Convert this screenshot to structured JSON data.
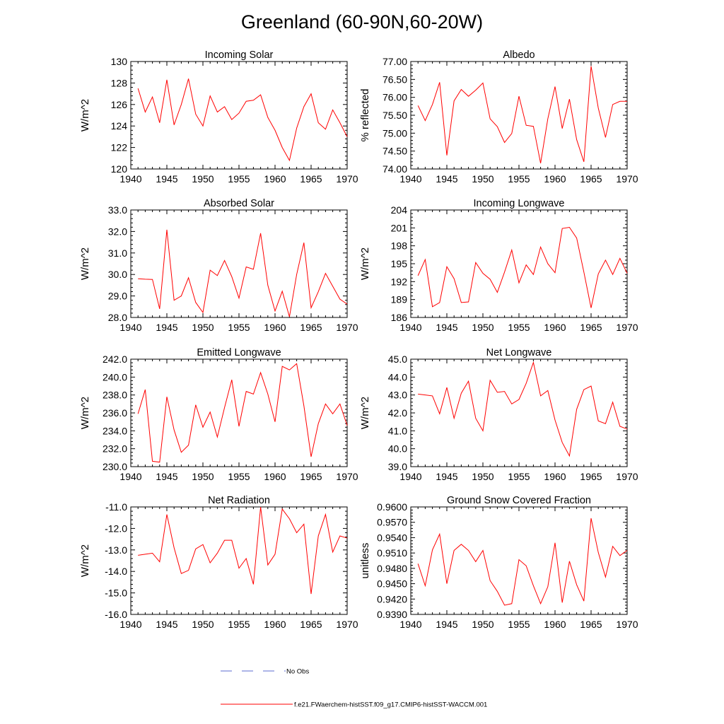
{
  "title": "Greenland (60-90N,60-20W)",
  "legend": [
    {
      "label": "No Obs",
      "color": "#5b6bd0",
      "style": "dashed"
    },
    {
      "label": "f.e21.FWaerchem-histSST.f09_g17.CMIP6-histSST-WACCM.001",
      "color": "#ff0000",
      "style": "solid"
    }
  ],
  "chart_data": [
    {
      "type": "line",
      "title": "Incoming Solar",
      "ylabel": "W/m^2",
      "xlim": [
        1940,
        1970
      ],
      "ylim": [
        120,
        130
      ],
      "xticks": [
        "1940",
        "1945",
        "1950",
        "1955",
        "1960",
        "1965",
        "1970"
      ],
      "yticks": [
        "120",
        "122",
        "124",
        "126",
        "128",
        "130"
      ],
      "x": [
        1941,
        1942,
        1943,
        1944,
        1945,
        1946,
        1947,
        1948,
        1949,
        1950,
        1951,
        1952,
        1953,
        1954,
        1955,
        1956,
        1957,
        1958,
        1959,
        1960,
        1961,
        1962,
        1963,
        1964,
        1965,
        1966,
        1967,
        1968,
        1969,
        1970
      ],
      "series": [
        {
          "color": "#ff0000",
          "values": [
            127.5,
            125.3,
            126.7,
            124.3,
            128.3,
            124.1,
            126.0,
            128.4,
            125.1,
            124.0,
            126.8,
            125.3,
            125.8,
            124.6,
            125.2,
            126.3,
            126.4,
            126.9,
            124.8,
            123.6,
            122.0,
            120.8,
            123.8,
            125.8,
            127.0,
            124.3,
            123.7,
            125.5,
            124.3,
            123.0
          ]
        }
      ]
    },
    {
      "type": "line",
      "title": "Albedo",
      "ylabel": "% reflected",
      "xlim": [
        1940,
        1970
      ],
      "ylim": [
        74.0,
        77.0
      ],
      "xticks": [
        "1940",
        "1945",
        "1950",
        "1955",
        "1960",
        "1965",
        "1970"
      ],
      "yticks": [
        "74.00",
        "74.50",
        "75.00",
        "75.50",
        "76.00",
        "76.50",
        "77.00"
      ],
      "x": [
        1941,
        1942,
        1943,
        1944,
        1945,
        1946,
        1947,
        1948,
        1949,
        1950,
        1951,
        1952,
        1953,
        1954,
        1955,
        1956,
        1957,
        1958,
        1959,
        1960,
        1961,
        1962,
        1963,
        1964,
        1965,
        1966,
        1967,
        1968,
        1969,
        1970
      ],
      "series": [
        {
          "color": "#ff0000",
          "values": [
            75.77,
            75.35,
            75.8,
            76.42,
            74.38,
            75.9,
            76.22,
            76.03,
            76.2,
            76.4,
            75.4,
            75.18,
            74.74,
            74.99,
            76.03,
            75.22,
            75.19,
            74.16,
            75.4,
            76.3,
            75.13,
            75.95,
            74.82,
            74.2,
            76.87,
            75.7,
            74.88,
            75.8,
            75.89,
            75.89
          ]
        }
      ]
    },
    {
      "type": "line",
      "title": "Absorbed Solar",
      "ylabel": "W/m^2",
      "xlim": [
        1940,
        1970
      ],
      "ylim": [
        28.0,
        33.0
      ],
      "xticks": [
        "1940",
        "1945",
        "1950",
        "1955",
        "1960",
        "1965",
        "1970"
      ],
      "yticks": [
        "28.0",
        "29.0",
        "30.0",
        "31.0",
        "32.0",
        "33.0"
      ],
      "x": [
        1941,
        1942,
        1943,
        1944,
        1945,
        1946,
        1947,
        1948,
        1949,
        1950,
        1951,
        1952,
        1953,
        1954,
        1955,
        1956,
        1957,
        1958,
        1959,
        1960,
        1961,
        1962,
        1963,
        1964,
        1965,
        1966,
        1967,
        1968,
        1969,
        1970
      ],
      "series": [
        {
          "color": "#ff0000",
          "values": [
            29.8,
            29.78,
            29.77,
            28.4,
            32.08,
            28.8,
            29.0,
            29.85,
            28.7,
            28.23,
            30.2,
            29.95,
            30.65,
            29.9,
            28.9,
            30.35,
            30.24,
            31.92,
            29.5,
            28.3,
            29.22,
            28.03,
            30.0,
            31.48,
            28.45,
            29.2,
            30.05,
            29.45,
            28.85,
            28.62
          ]
        }
      ]
    },
    {
      "type": "line",
      "title": "Incoming Longwave",
      "ylabel": "W/m^2",
      "xlim": [
        1940,
        1970
      ],
      "ylim": [
        186,
        204
      ],
      "xticks": [
        "1940",
        "1945",
        "1950",
        "1955",
        "1960",
        "1965",
        "1970"
      ],
      "yticks": [
        "186",
        "189",
        "192",
        "195",
        "198",
        "201",
        "204"
      ],
      "x": [
        1941,
        1942,
        1943,
        1944,
        1945,
        1946,
        1947,
        1948,
        1949,
        1950,
        1951,
        1952,
        1953,
        1954,
        1955,
        1956,
        1957,
        1958,
        1959,
        1960,
        1961,
        1962,
        1963,
        1964,
        1965,
        1966,
        1967,
        1968,
        1969,
        1970
      ],
      "series": [
        {
          "color": "#ff0000",
          "values": [
            193.0,
            195.7,
            187.8,
            188.5,
            194.5,
            192.5,
            188.5,
            188.6,
            195.2,
            193.4,
            192.4,
            190.2,
            193.6,
            197.3,
            191.8,
            194.8,
            193.2,
            197.8,
            195.0,
            193.5,
            200.9,
            201.1,
            199.3,
            193.6,
            187.6,
            193.3,
            195.6,
            193.2,
            195.9,
            193.4
          ]
        }
      ]
    },
    {
      "type": "line",
      "title": "Emitted Longwave",
      "ylabel": "W/m^2",
      "xlim": [
        1940,
        1970
      ],
      "ylim": [
        230.0,
        242.0
      ],
      "xticks": [
        "1940",
        "1945",
        "1950",
        "1955",
        "1960",
        "1965",
        "1970"
      ],
      "yticks": [
        "230.0",
        "232.0",
        "234.0",
        "236.0",
        "238.0",
        "240.0",
        "242.0"
      ],
      "x": [
        1941,
        1942,
        1943,
        1944,
        1945,
        1946,
        1947,
        1948,
        1949,
        1950,
        1951,
        1952,
        1953,
        1954,
        1955,
        1956,
        1957,
        1958,
        1959,
        1960,
        1961,
        1962,
        1963,
        1964,
        1965,
        1966,
        1967,
        1968,
        1969,
        1970
      ],
      "series": [
        {
          "color": "#ff0000",
          "values": [
            235.9,
            238.6,
            230.6,
            230.5,
            237.8,
            234.1,
            231.6,
            232.4,
            236.9,
            234.4,
            236.1,
            233.3,
            236.6,
            239.7,
            234.5,
            238.4,
            238.1,
            240.5,
            238.1,
            235.0,
            241.2,
            240.8,
            241.5,
            236.8,
            231.1,
            234.8,
            237.0,
            235.9,
            237.0,
            234.6
          ]
        }
      ]
    },
    {
      "type": "line",
      "title": "Net Longwave",
      "ylabel": "W/m^2",
      "xlim": [
        1940,
        1970
      ],
      "ylim": [
        39.0,
        45.0
      ],
      "xticks": [
        "1940",
        "1945",
        "1950",
        "1955",
        "1960",
        "1965",
        "1970"
      ],
      "yticks": [
        "39.0",
        "40.0",
        "41.0",
        "42.0",
        "43.0",
        "44.0",
        "45.0"
      ],
      "x": [
        1941,
        1942,
        1943,
        1944,
        1945,
        1946,
        1947,
        1948,
        1949,
        1950,
        1951,
        1952,
        1953,
        1954,
        1955,
        1956,
        1957,
        1958,
        1959,
        1960,
        1961,
        1962,
        1963,
        1964,
        1965,
        1966,
        1967,
        1968,
        1969,
        1970
      ],
      "series": [
        {
          "color": "#ff0000",
          "values": [
            43.05,
            43.0,
            42.95,
            41.95,
            43.42,
            41.7,
            43.1,
            43.77,
            41.7,
            41.0,
            43.82,
            43.15,
            43.2,
            42.5,
            42.75,
            43.65,
            44.82,
            42.95,
            43.25,
            41.6,
            40.35,
            39.6,
            42.2,
            43.3,
            43.5,
            41.55,
            41.4,
            42.6,
            41.25,
            41.1
          ]
        }
      ]
    },
    {
      "type": "line",
      "title": "Net Radiation",
      "ylabel": "W/m^2",
      "xlim": [
        1940,
        1970
      ],
      "ylim": [
        -16.0,
        -11.0
      ],
      "xticks": [
        "1940",
        "1945",
        "1950",
        "1955",
        "1960",
        "1965",
        "1970"
      ],
      "yticks": [
        "-16.0",
        "-15.0",
        "-14.0",
        "-13.0",
        "-12.0",
        "-11.0"
      ],
      "x": [
        1941,
        1942,
        1943,
        1944,
        1945,
        1946,
        1947,
        1948,
        1949,
        1950,
        1951,
        1952,
        1953,
        1954,
        1955,
        1956,
        1957,
        1958,
        1959,
        1960,
        1961,
        1962,
        1963,
        1964,
        1965,
        1966,
        1967,
        1968,
        1969,
        1970
      ],
      "series": [
        {
          "color": "#ff0000",
          "values": [
            -13.25,
            -13.2,
            -13.15,
            -13.55,
            -11.35,
            -12.9,
            -14.1,
            -13.95,
            -12.95,
            -12.75,
            -13.6,
            -13.15,
            -12.55,
            -12.55,
            -13.85,
            -13.4,
            -14.6,
            -11.0,
            -13.7,
            -13.2,
            -11.1,
            -11.55,
            -12.2,
            -11.8,
            -15.05,
            -12.35,
            -11.35,
            -13.1,
            -12.35,
            -12.45
          ]
        }
      ]
    },
    {
      "type": "line",
      "title": "Ground Snow Covered Fraction",
      "ylabel": "unitless",
      "xlim": [
        1940,
        1970
      ],
      "ylim": [
        0.939,
        0.96
      ],
      "xticks": [
        "1940",
        "1945",
        "1950",
        "1955",
        "1960",
        "1965",
        "1970"
      ],
      "yticks": [
        "0.9390",
        "0.9420",
        "0.9450",
        "0.9480",
        "0.9510",
        "0.9540",
        "0.9570",
        "0.9600"
      ],
      "x": [
        1941,
        1942,
        1943,
        1944,
        1945,
        1946,
        1947,
        1948,
        1949,
        1950,
        1951,
        1952,
        1953,
        1954,
        1955,
        1956,
        1957,
        1958,
        1959,
        1960,
        1961,
        1962,
        1963,
        1964,
        1965,
        1966,
        1967,
        1968,
        1969,
        1970
      ],
      "series": [
        {
          "color": "#ff0000",
          "values": [
            0.9489,
            0.9446,
            0.9516,
            0.9547,
            0.945,
            0.9515,
            0.9527,
            0.9515,
            0.9493,
            0.9515,
            0.9456,
            0.9435,
            0.9408,
            0.9411,
            0.9497,
            0.9485,
            0.9446,
            0.9411,
            0.9444,
            0.953,
            0.9413,
            0.9494,
            0.9448,
            0.9416,
            0.9578,
            0.9511,
            0.9463,
            0.9523,
            0.9505,
            0.9515
          ]
        }
      ]
    }
  ]
}
